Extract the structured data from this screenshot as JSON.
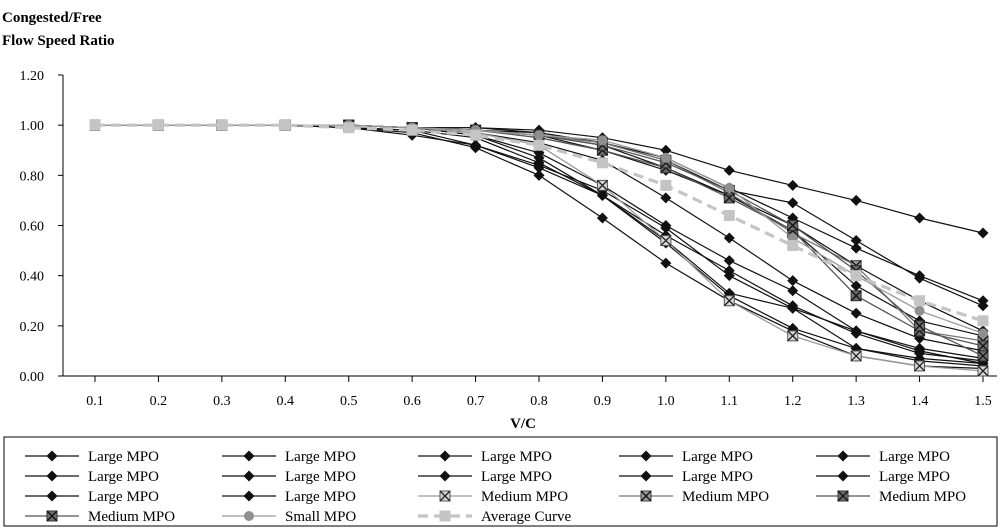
{
  "chart_data": {
    "type": "line",
    "title": "",
    "ylabel_lines": [
      "Congested/Free",
      "Flow Speed Ratio"
    ],
    "xlabel": "V/C",
    "x": [
      "0.1",
      "0.2",
      "0.3",
      "0.4",
      "0.5",
      "0.6",
      "0.7",
      "0.8",
      "0.9",
      "1.0",
      "1.1",
      "1.2",
      "1.3",
      "1.4",
      "1.5"
    ],
    "y_ticks": [
      "0.00",
      "0.20",
      "0.40",
      "0.60",
      "0.80",
      "1.00",
      "1.20"
    ],
    "ylim": [
      0,
      1.2
    ],
    "grid": false,
    "legend_position": "bottom",
    "series": [
      {
        "name": "Large MPO",
        "style": "large",
        "values": [
          1.0,
          1.0,
          1.0,
          1.0,
          1.0,
          0.99,
          0.99,
          0.98,
          0.95,
          0.9,
          0.82,
          0.76,
          0.7,
          0.63,
          0.57
        ]
      },
      {
        "name": "Large MPO",
        "style": "large",
        "values": [
          1.0,
          1.0,
          1.0,
          1.0,
          1.0,
          0.99,
          0.99,
          0.97,
          0.93,
          0.87,
          0.75,
          0.63,
          0.51,
          0.4,
          0.3
        ]
      },
      {
        "name": "Large MPO",
        "style": "large",
        "values": [
          1.0,
          1.0,
          1.0,
          1.0,
          1.0,
          0.99,
          0.98,
          0.97,
          0.93,
          0.86,
          0.74,
          0.69,
          0.54,
          0.39,
          0.28
        ]
      },
      {
        "name": "Large MPO",
        "style": "large",
        "values": [
          1.0,
          1.0,
          1.0,
          1.0,
          1.0,
          0.99,
          0.98,
          0.96,
          0.92,
          0.83,
          0.72,
          0.6,
          0.44,
          0.3,
          0.18
        ]
      },
      {
        "name": "Large MPO",
        "style": "large",
        "values": [
          1.0,
          1.0,
          1.0,
          1.0,
          1.0,
          0.99,
          0.98,
          0.96,
          0.9,
          0.82,
          0.72,
          0.58,
          0.36,
          0.22,
          0.16
        ]
      },
      {
        "name": "Large MPO",
        "style": "large",
        "values": [
          1.0,
          1.0,
          1.0,
          1.0,
          1.0,
          0.99,
          0.97,
          0.93,
          0.86,
          0.71,
          0.55,
          0.38,
          0.25,
          0.15,
          0.1
        ]
      },
      {
        "name": "Large MPO",
        "style": "large",
        "values": [
          1.0,
          1.0,
          1.0,
          1.0,
          1.0,
          0.99,
          0.96,
          0.89,
          0.76,
          0.6,
          0.46,
          0.34,
          0.18,
          0.11,
          0.07
        ]
      },
      {
        "name": "Large MPO",
        "style": "large",
        "values": [
          1.0,
          1.0,
          1.0,
          1.0,
          1.0,
          0.99,
          0.96,
          0.87,
          0.72,
          0.56,
          0.42,
          0.28,
          0.17,
          0.09,
          0.06
        ]
      },
      {
        "name": "Large MPO",
        "style": "large",
        "values": [
          1.0,
          1.0,
          1.0,
          1.0,
          0.99,
          0.98,
          0.95,
          0.85,
          0.72,
          0.54,
          0.33,
          0.27,
          0.11,
          0.07,
          0.05
        ]
      },
      {
        "name": "Large MPO",
        "style": "large",
        "values": [
          1.0,
          1.0,
          1.0,
          1.0,
          0.99,
          0.98,
          0.92,
          0.83,
          0.72,
          0.53,
          0.32,
          0.19,
          0.11,
          0.06,
          0.04
        ]
      },
      {
        "name": "Large MPO",
        "style": "large",
        "values": [
          1.0,
          1.0,
          1.0,
          1.0,
          0.99,
          0.97,
          0.91,
          0.8,
          0.63,
          0.45,
          0.3,
          0.18,
          0.08,
          0.04,
          0.03
        ]
      },
      {
        "name": "Large MPO",
        "style": "large",
        "values": [
          1.0,
          1.0,
          1.0,
          1.0,
          0.99,
          0.96,
          0.92,
          0.84,
          0.74,
          0.59,
          0.4,
          0.27,
          0.18,
          0.1,
          0.05
        ]
      },
      {
        "name": "Medium MPO",
        "style": "medium-light",
        "values": [
          1.0,
          1.0,
          1.0,
          1.0,
          1.0,
          0.99,
          0.97,
          0.92,
          0.76,
          0.54,
          0.3,
          0.16,
          0.08,
          0.04,
          0.02
        ]
      },
      {
        "name": "Medium MPO",
        "style": "medium-mid",
        "values": [
          1.0,
          1.0,
          1.0,
          1.0,
          1.0,
          0.99,
          0.98,
          0.96,
          0.93,
          0.86,
          0.73,
          0.57,
          0.44,
          0.18,
          0.14
        ]
      },
      {
        "name": "Medium MPO",
        "style": "medium-dark",
        "values": [
          1.0,
          1.0,
          1.0,
          1.0,
          1.0,
          0.99,
          0.98,
          0.95,
          0.9,
          0.83,
          0.71,
          0.58,
          0.32,
          0.18,
          0.12
        ]
      },
      {
        "name": "Medium MPO",
        "style": "medium-dark",
        "values": [
          1.0,
          1.0,
          1.0,
          1.0,
          1.0,
          0.99,
          0.98,
          0.96,
          0.92,
          0.85,
          0.74,
          0.6,
          0.42,
          0.2,
          0.08
        ]
      },
      {
        "name": "Small MPO",
        "style": "small",
        "values": [
          1.0,
          1.0,
          1.0,
          1.0,
          1.0,
          0.99,
          0.98,
          0.96,
          0.94,
          0.87,
          0.75,
          0.55,
          0.4,
          0.26,
          0.17
        ]
      },
      {
        "name": "Average Curve",
        "style": "average",
        "values": [
          1.0,
          1.0,
          1.0,
          1.0,
          0.99,
          0.98,
          0.96,
          0.92,
          0.85,
          0.76,
          0.64,
          0.52,
          0.4,
          0.3,
          0.22
        ]
      }
    ]
  }
}
